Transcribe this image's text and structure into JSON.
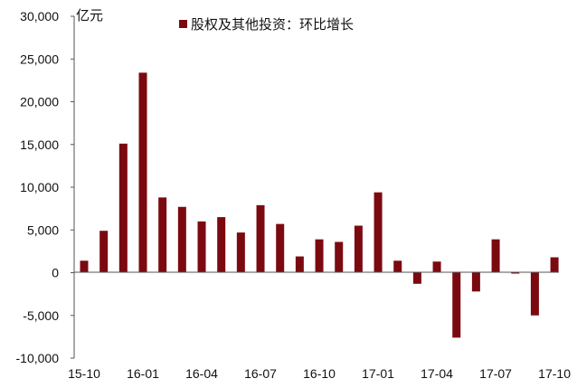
{
  "chart_data": {
    "type": "bar",
    "unit_label": "亿元",
    "legend": "股权及其他投资：环比增长",
    "color": "#7b0a10",
    "ylim": [
      -10000,
      30000
    ],
    "yticks": [
      "30,000",
      "25,000",
      "20,000",
      "15,000",
      "10,000",
      "5,000",
      "0",
      "-5,000",
      "-10,000"
    ],
    "ytick_values": [
      30000,
      25000,
      20000,
      15000,
      10000,
      5000,
      0,
      -5000,
      -10000
    ],
    "xtick_labels": [
      "15-10",
      "16-01",
      "16-04",
      "16-07",
      "16-10",
      "17-01",
      "17-04",
      "17-07",
      "17-10"
    ],
    "categories": [
      "15-10",
      "15-11",
      "15-12",
      "16-01",
      "16-02",
      "16-03",
      "16-04",
      "16-05",
      "16-06",
      "16-07",
      "16-08",
      "16-09",
      "16-10",
      "16-11",
      "16-12",
      "17-01",
      "17-02",
      "17-03",
      "17-04",
      "17-05",
      "17-06",
      "17-07",
      "17-08",
      "17-09",
      "17-10"
    ],
    "values": [
      1400,
      4900,
      15100,
      23400,
      8800,
      7700,
      6000,
      6500,
      4700,
      7900,
      5700,
      1900,
      3900,
      3600,
      5500,
      9400,
      1400,
      -1300,
      1300,
      -7600,
      -2200,
      3900,
      -100,
      -5000,
      1800
    ],
    "grid": false,
    "legend_position": "top-center"
  }
}
